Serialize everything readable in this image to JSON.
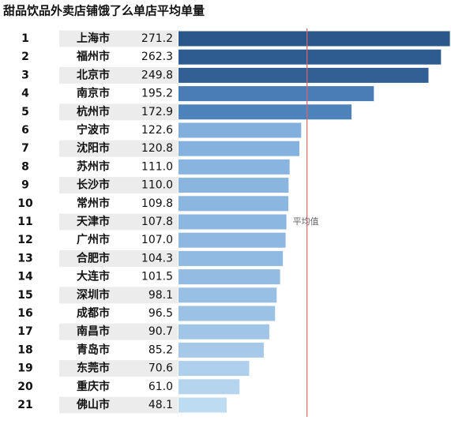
{
  "chart_data": {
    "type": "bar",
    "orientation": "horizontal",
    "title": "甜品饮品外卖店铺饿了么单店平均单量",
    "ranks": [
      1,
      2,
      3,
      4,
      5,
      6,
      7,
      8,
      9,
      10,
      11,
      12,
      13,
      14,
      15,
      16,
      17,
      18,
      19,
      20,
      21
    ],
    "categories": [
      "上海市",
      "福州市",
      "北京市",
      "南京市",
      "杭州市",
      "宁波市",
      "沈阳市",
      "苏州市",
      "长沙市",
      "常州市",
      "天津市",
      "广州市",
      "合肥市",
      "大连市",
      "深圳市",
      "成都市",
      "南昌市",
      "青岛市",
      "东莞市",
      "重庆市",
      "佛山市"
    ],
    "values": [
      271.2,
      262.3,
      249.8,
      195.2,
      172.9,
      122.6,
      120.8,
      111.0,
      110.0,
      109.8,
      107.8,
      107.0,
      104.3,
      101.5,
      98.1,
      96.5,
      90.7,
      85.2,
      70.6,
      61.0,
      48.1
    ],
    "value_labels": [
      "271.2",
      "262.3",
      "249.8",
      "195.2",
      "172.9",
      "122.6",
      "120.8",
      "111.0",
      "110.0",
      "109.8",
      "107.8",
      "107.0",
      "104.3",
      "101.5",
      "98.1",
      "96.5",
      "90.7",
      "85.2",
      "70.6",
      "61.0",
      "48.1"
    ],
    "colors": [
      "#2b578a",
      "#2f5c90",
      "#325f94",
      "#4a7db6",
      "#4e82bb",
      "#82afdc",
      "#84b1dd",
      "#88b4df",
      "#89b5df",
      "#8ab6e0",
      "#8cb7e0",
      "#8eb8e1",
      "#91bae2",
      "#94bce3",
      "#98bfe4",
      "#9bc1e5",
      "#a0c5e7",
      "#a6c9e9",
      "#aed0ec",
      "#b5d5ee",
      "#bddbf1"
    ],
    "average": 128.4,
    "average_label": "平均值",
    "average_color": "#d9666a",
    "xlim": [
      0,
      271.5
    ]
  }
}
